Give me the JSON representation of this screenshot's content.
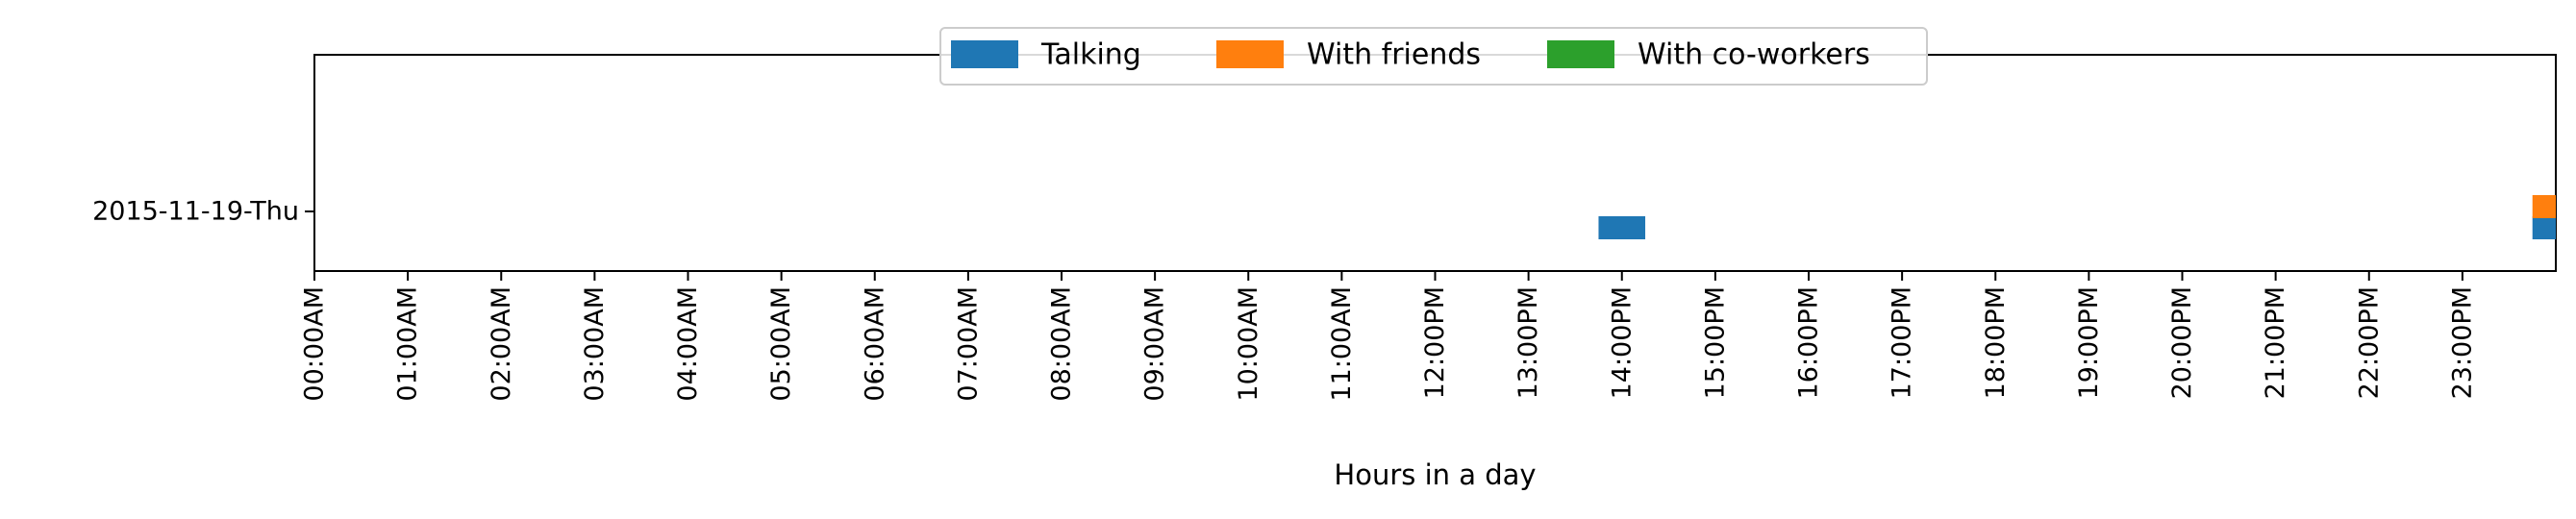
{
  "chart_data": {
    "type": "bar",
    "orientation": "horizontal-timeline",
    "xlabel": "Hours in a day",
    "ylabel": "",
    "xlim": [
      0,
      24
    ],
    "x_ticks": [
      "00:00AM",
      "01:00AM",
      "02:00AM",
      "03:00AM",
      "04:00AM",
      "05:00AM",
      "06:00AM",
      "07:00AM",
      "08:00AM",
      "09:00AM",
      "10:00AM",
      "11:00AM",
      "12:00PM",
      "13:00PM",
      "14:00PM",
      "15:00PM",
      "16:00PM",
      "17:00PM",
      "18:00PM",
      "19:00PM",
      "20:00PM",
      "21:00PM",
      "22:00PM",
      "23:00PM"
    ],
    "categories": [
      "2015-11-19-Thu"
    ],
    "grid": false,
    "legend_position": "top-center",
    "series": [
      {
        "name": "Talking",
        "color": "#1f77b4",
        "intervals": [
          {
            "day": "2015-11-19-Thu",
            "start": 13.75,
            "end": 14.25
          },
          {
            "day": "2015-11-19-Thu",
            "start": 23.75,
            "end": 24.0
          }
        ]
      },
      {
        "name": "With friends",
        "color": "#ff7f0e",
        "intervals": [
          {
            "day": "2015-11-19-Thu",
            "start": 23.75,
            "end": 24.0
          }
        ]
      },
      {
        "name": "With co-workers",
        "color": "#2ca02c",
        "intervals": []
      }
    ]
  }
}
